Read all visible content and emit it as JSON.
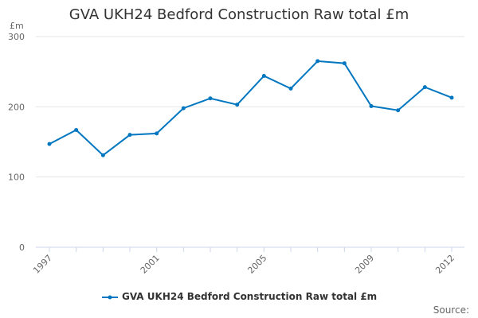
{
  "chart_data": {
    "type": "line",
    "title": "GVA UKH24 Bedford Construction Raw total £m",
    "ylabel": "£m",
    "xlabel": "",
    "ylim": [
      0,
      300
    ],
    "yticks": [
      "0",
      "100",
      "200",
      "300"
    ],
    "xtick_labels": [
      "1997",
      "2001",
      "2005",
      "2009",
      "2012"
    ],
    "x": [
      1997,
      1998,
      1999,
      2000,
      2001,
      2002,
      2003,
      2004,
      2005,
      2006,
      2007,
      2008,
      2009,
      2010,
      2011,
      2012
    ],
    "series": [
      {
        "name": "GVA UKH24 Bedford Construction Raw total £m",
        "color": "#0077c0",
        "values": [
          147,
          167,
          131,
          160,
          162,
          198,
          212,
          203,
          244,
          226,
          265,
          262,
          201,
          195,
          228,
          213
        ]
      }
    ],
    "grid": true,
    "legend": "bottom-center"
  },
  "source_label": "Source:"
}
